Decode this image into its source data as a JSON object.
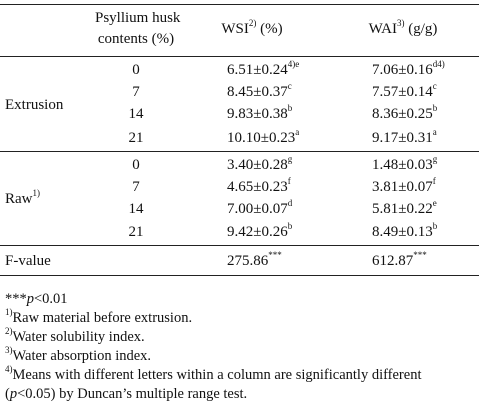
{
  "header": {
    "content_line1": "Psyllium husk",
    "content_line2": "contents (%)",
    "wsi": "WSI",
    "wsi_sup": "2)",
    "wsi_unit": " (%)",
    "wai": "WAI",
    "wai_sup": "3)",
    "wai_unit": " (g/g)"
  },
  "groups": {
    "extrusion": {
      "label": "Extrusion",
      "sup": ""
    },
    "raw": {
      "label": "Raw",
      "sup": "1)"
    }
  },
  "rows": {
    "extrusion": [
      {
        "content": "0",
        "wsi": "6.51±0.24",
        "wsi_sup": "4)e",
        "wai": "7.06±0.16",
        "wai_sup": "d4)"
      },
      {
        "content": "7",
        "wsi": "8.45±0.37",
        "wsi_sup": "c",
        "wai": "7.57±0.14",
        "wai_sup": "c"
      },
      {
        "content": "14",
        "wsi": "9.83±0.38",
        "wsi_sup": "b",
        "wai": "8.36±0.25",
        "wai_sup": "b"
      },
      {
        "content": "21",
        "wsi": "10.10±0.23",
        "wsi_sup": "a",
        "wai": "9.17±0.31",
        "wai_sup": "a"
      }
    ],
    "raw": [
      {
        "content": "0",
        "wsi": "3.40±0.28",
        "wsi_sup": "g",
        "wai": "1.48±0.03",
        "wai_sup": "g"
      },
      {
        "content": "7",
        "wsi": "4.65±0.23",
        "wsi_sup": "f",
        "wai": "3.81±0.07",
        "wai_sup": "f"
      },
      {
        "content": "14",
        "wsi": "7.00±0.07",
        "wsi_sup": "d",
        "wai": "5.81±0.22",
        "wai_sup": "e"
      },
      {
        "content": "21",
        "wsi": "9.42±0.26",
        "wsi_sup": "b",
        "wai": "8.49±0.13",
        "wai_sup": "b"
      }
    ]
  },
  "fvalue": {
    "label": "F-value",
    "wsi": "275.86",
    "wsi_sup": "***",
    "wai": "612.87",
    "wai_sup": "***"
  },
  "notes": {
    "sig_prefix": "***",
    "sig_p": "p",
    "sig_rest": "<0.01",
    "n1_sup": "1)",
    "n1_text": "Raw material before extrusion.",
    "n2_sup": "2)",
    "n2_text": "Water solubility index.",
    "n3_sup": "3)",
    "n3_text": "Water absorption index.",
    "n4_sup": "4)",
    "n4_text": "Means with different letters within a column are significantly different",
    "n4_open": "(",
    "n4_p": "p",
    "n4_rest": "<0.05) by Duncan’s multiple range test."
  }
}
